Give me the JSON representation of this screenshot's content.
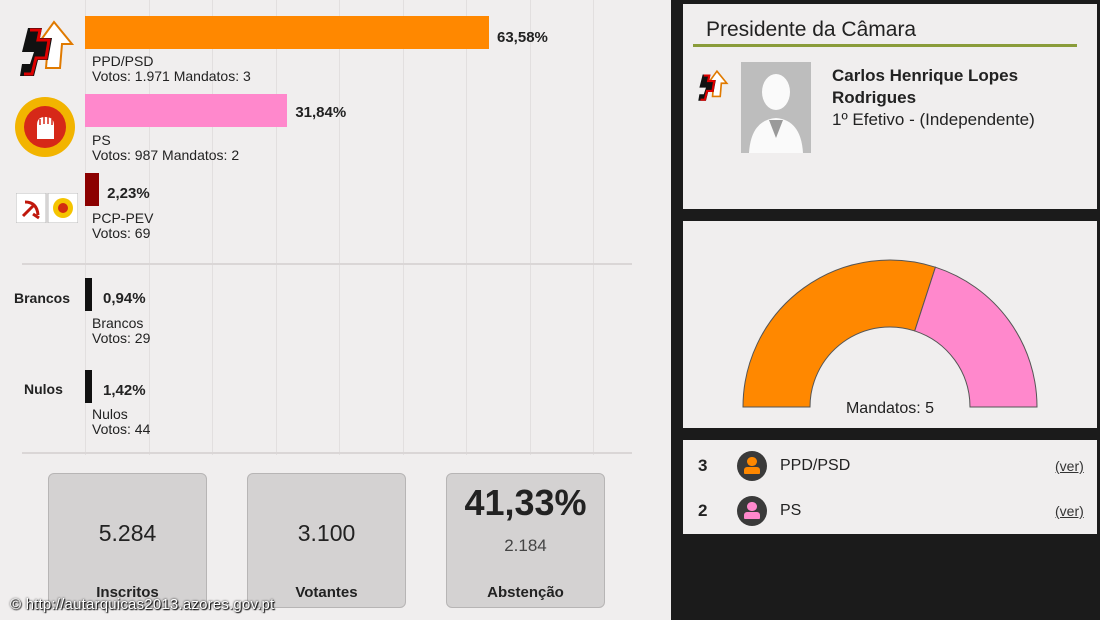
{
  "parties": [
    {
      "name": "PPD/PSD",
      "pct": "63,58%",
      "detail": "Votos: 1.971 Mandatos: 3",
      "value": 63.58,
      "color": "#ff8800"
    },
    {
      "name": "PS",
      "pct": "31,84%",
      "detail": "Votos: 987 Mandatos: 2",
      "value": 31.84,
      "color": "#ff88cc"
    },
    {
      "name": "PCP-PEV",
      "pct": "2,23%",
      "detail": "Votos: 69",
      "value": 2.23,
      "color": "#8b0000"
    }
  ],
  "others": [
    {
      "side_label": "Brancos",
      "pct": "0,94%",
      "name": "Brancos",
      "detail": "Votos: 29",
      "value": 0.94
    },
    {
      "side_label": "Nulos",
      "pct": "1,42%",
      "name": "Nulos",
      "detail": "Votos: 44",
      "value": 1.42
    }
  ],
  "stats": [
    {
      "value": "5.284",
      "label": "Inscritos"
    },
    {
      "value": "3.100",
      "label": "Votantes"
    },
    {
      "value": "41,33%",
      "sub": "2.184",
      "label": "Abstenção"
    }
  ],
  "president": {
    "title": "Presidente da Câmara",
    "name_line1": "Carlos Henrique Lopes",
    "name_line2": "Rodrigues",
    "role": "1º Efetivo - (Independente)"
  },
  "mandatos": {
    "label": "Mandatos: 5",
    "seats": [
      {
        "party": "PPD/PSD",
        "count": 3,
        "color": "#ff8800"
      },
      {
        "party": "PS",
        "count": 2,
        "color": "#ff88cc"
      }
    ]
  },
  "seat_list": [
    {
      "count": "3",
      "party": "PPD/PSD",
      "link": "(ver)",
      "color": "#ff8800"
    },
    {
      "count": "2",
      "party": "PS",
      "link": "(ver)",
      "color": "#ff88cc"
    }
  ],
  "footer": "© http://autarquicas2013.azores.gov.pt",
  "colors": {
    "psd": "#ff8800",
    "ps": "#ff88cc",
    "pcp": "#8b0000",
    "panel_bg": "#f0eeee",
    "dark_bg": "#1b1b1b"
  }
}
